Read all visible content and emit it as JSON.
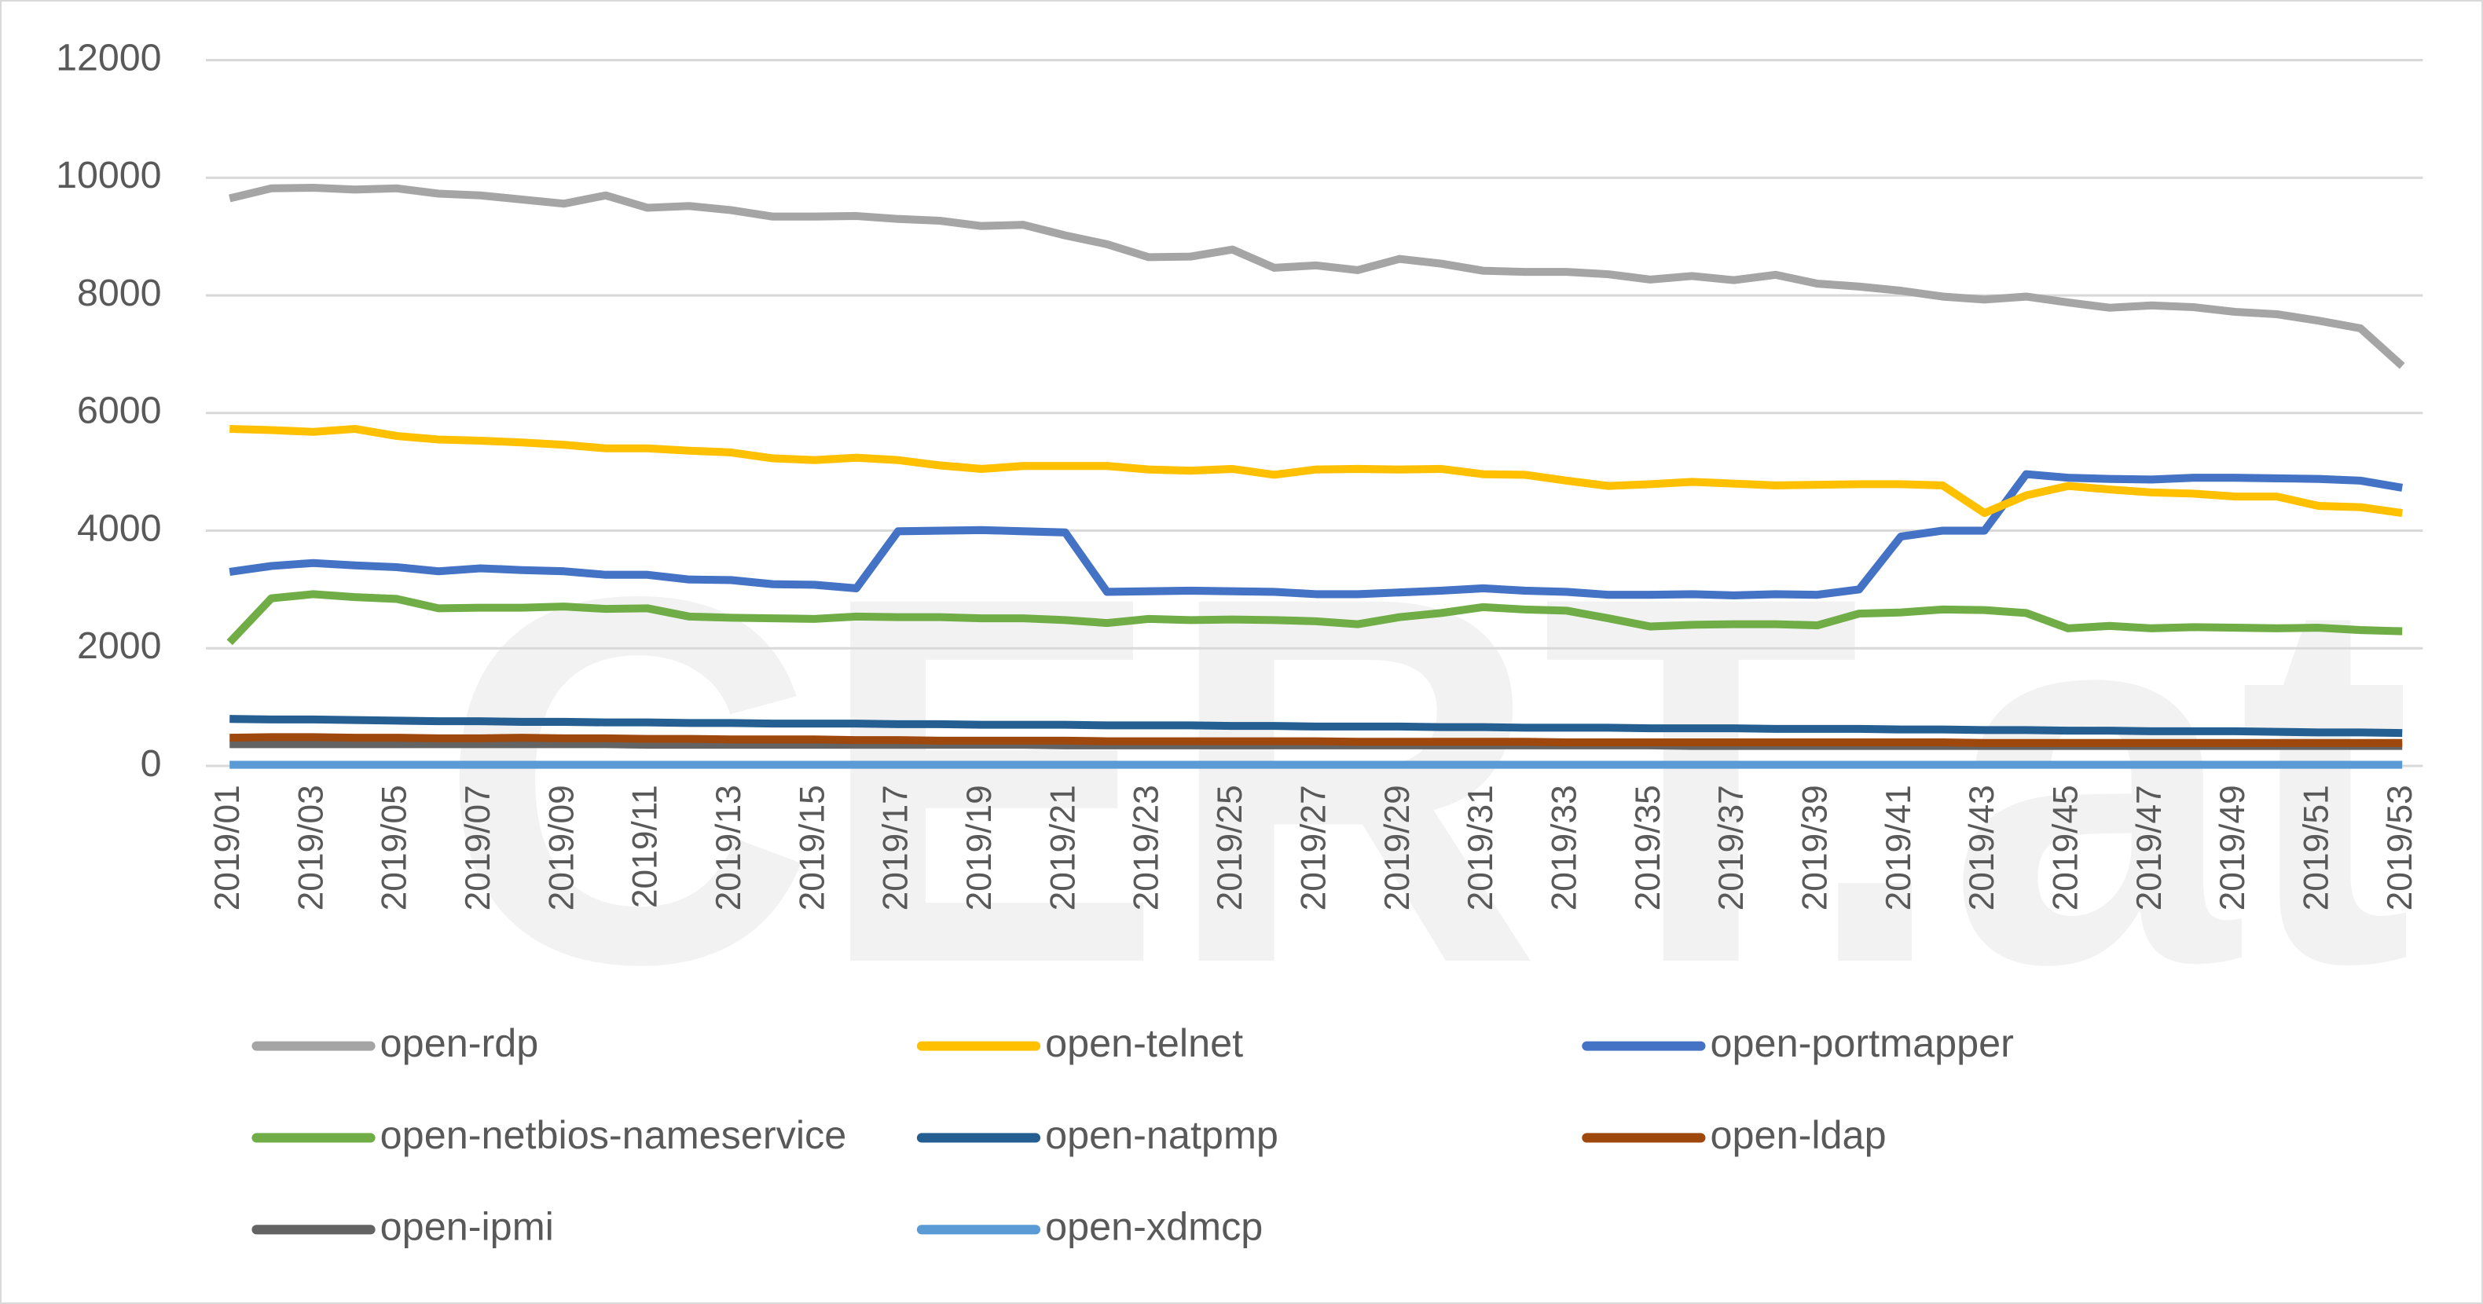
{
  "chart_data": {
    "type": "line",
    "watermark": "CERT.at",
    "categories": [
      "2019/01",
      null,
      "2019/03",
      null,
      "2019/05",
      null,
      "2019/07",
      null,
      "2019/09",
      null,
      "2019/11",
      null,
      "2019/13",
      null,
      "2019/15",
      null,
      "2019/17",
      null,
      "2019/19",
      null,
      "2019/21",
      null,
      "2019/23",
      null,
      "2019/25",
      null,
      "2019/27",
      null,
      "2019/29",
      null,
      "2019/31",
      null,
      "2019/33",
      null,
      "2019/35",
      null,
      "2019/37",
      null,
      "2019/39",
      null,
      "2019/41",
      null,
      "2019/43",
      null,
      "2019/45",
      null,
      "2019/47",
      null,
      "2019/49",
      null,
      "2019/51",
      null,
      "2019/53"
    ],
    "ylim": [
      0,
      12000
    ],
    "yticks": [
      0,
      2000,
      4000,
      6000,
      8000,
      10000,
      12000
    ],
    "grid": true,
    "series": [
      {
        "name": "open-rdp",
        "color": "#a5a5a5",
        "values": [
          9650,
          9820,
          9830,
          9800,
          9820,
          9730,
          9700,
          9630,
          9560,
          9700,
          9490,
          9520,
          9450,
          9340,
          9340,
          9350,
          9300,
          9270,
          9180,
          9200,
          9020,
          8870,
          8650,
          8660,
          8780,
          8470,
          8510,
          8430,
          8620,
          8540,
          8420,
          8400,
          8400,
          8360,
          8270,
          8330,
          8260,
          8350,
          8200,
          8150,
          8080,
          7980,
          7930,
          7980,
          7880,
          7790,
          7830,
          7800,
          7720,
          7680,
          7570,
          7440,
          6800
        ]
      },
      {
        "name": "open-telnet",
        "color": "#ffc000",
        "values": [
          5730,
          5710,
          5680,
          5730,
          5610,
          5550,
          5530,
          5500,
          5460,
          5400,
          5400,
          5360,
          5330,
          5230,
          5200,
          5240,
          5200,
          5110,
          5050,
          5100,
          5100,
          5100,
          5040,
          5020,
          5050,
          4950,
          5040,
          5050,
          5040,
          5050,
          4960,
          4950,
          4850,
          4760,
          4790,
          4830,
          4800,
          4770,
          4780,
          4790,
          4790,
          4770,
          4300,
          4600,
          4760,
          4700,
          4650,
          4630,
          4580,
          4580,
          4420,
          4400,
          4300
        ]
      },
      {
        "name": "open-portmapper",
        "color": "#4472c4",
        "values": [
          3300,
          3400,
          3450,
          3410,
          3380,
          3310,
          3360,
          3330,
          3310,
          3250,
          3250,
          3170,
          3160,
          3090,
          3080,
          3020,
          3990,
          4000,
          4010,
          3990,
          3970,
          2960,
          2970,
          2980,
          2970,
          2960,
          2920,
          2920,
          2950,
          2980,
          3020,
          2980,
          2960,
          2910,
          2910,
          2920,
          2900,
          2920,
          2910,
          3000,
          3900,
          4000,
          4000,
          4960,
          4900,
          4880,
          4870,
          4900,
          4900,
          4890,
          4880,
          4850,
          4730
        ]
      },
      {
        "name": "open-netbios-nameservice",
        "color": "#70ad47",
        "values": [
          2100,
          2850,
          2920,
          2870,
          2840,
          2680,
          2690,
          2690,
          2710,
          2670,
          2680,
          2540,
          2520,
          2510,
          2500,
          2540,
          2530,
          2530,
          2510,
          2510,
          2480,
          2430,
          2500,
          2480,
          2490,
          2480,
          2460,
          2410,
          2530,
          2600,
          2700,
          2660,
          2640,
          2510,
          2370,
          2400,
          2410,
          2410,
          2390,
          2590,
          2610,
          2660,
          2650,
          2600,
          2340,
          2380,
          2340,
          2360,
          2350,
          2340,
          2350,
          2310,
          2290
        ]
      },
      {
        "name": "open-natpmp",
        "color": "#255e91",
        "values": [
          800,
          790,
          790,
          780,
          770,
          760,
          760,
          750,
          750,
          740,
          740,
          730,
          730,
          720,
          720,
          720,
          710,
          710,
          700,
          700,
          700,
          690,
          690,
          690,
          680,
          680,
          670,
          670,
          670,
          660,
          660,
          650,
          650,
          650,
          640,
          640,
          640,
          630,
          630,
          630,
          620,
          620,
          610,
          610,
          600,
          600,
          590,
          590,
          590,
          580,
          570,
          570,
          560
        ]
      },
      {
        "name": "open-ldap",
        "color": "#9e480e",
        "values": [
          480,
          490,
          490,
          480,
          480,
          470,
          470,
          480,
          470,
          470,
          460,
          460,
          450,
          450,
          450,
          440,
          440,
          430,
          430,
          430,
          430,
          420,
          420,
          420,
          420,
          420,
          420,
          410,
          410,
          410,
          410,
          410,
          400,
          400,
          400,
          400,
          400,
          400,
          400,
          400,
          400,
          400,
          390,
          390,
          390,
          390,
          390,
          390,
          390,
          390,
          390,
          390,
          390
        ]
      },
      {
        "name": "open-ipmi",
        "color": "#636363",
        "values": [
          370,
          370,
          370,
          370,
          370,
          370,
          370,
          370,
          370,
          370,
          360,
          360,
          360,
          360,
          360,
          360,
          360,
          360,
          360,
          360,
          350,
          350,
          350,
          350,
          350,
          350,
          350,
          350,
          350,
          350,
          350,
          350,
          350,
          350,
          350,
          340,
          340,
          340,
          340,
          340,
          340,
          340,
          340,
          340,
          340,
          340,
          340,
          340,
          340,
          340,
          340,
          340,
          340
        ]
      },
      {
        "name": "open-xdmcp",
        "color": "#5b9bd5",
        "values": [
          20,
          20,
          20,
          20,
          20,
          20,
          20,
          20,
          20,
          20,
          20,
          20,
          20,
          20,
          20,
          20,
          20,
          20,
          20,
          20,
          20,
          20,
          20,
          20,
          20,
          20,
          20,
          20,
          20,
          20,
          20,
          20,
          20,
          20,
          20,
          20,
          20,
          20,
          20,
          20,
          20,
          20,
          20,
          20,
          20,
          20,
          20,
          20,
          20,
          20,
          20,
          20,
          20
        ]
      }
    ]
  }
}
